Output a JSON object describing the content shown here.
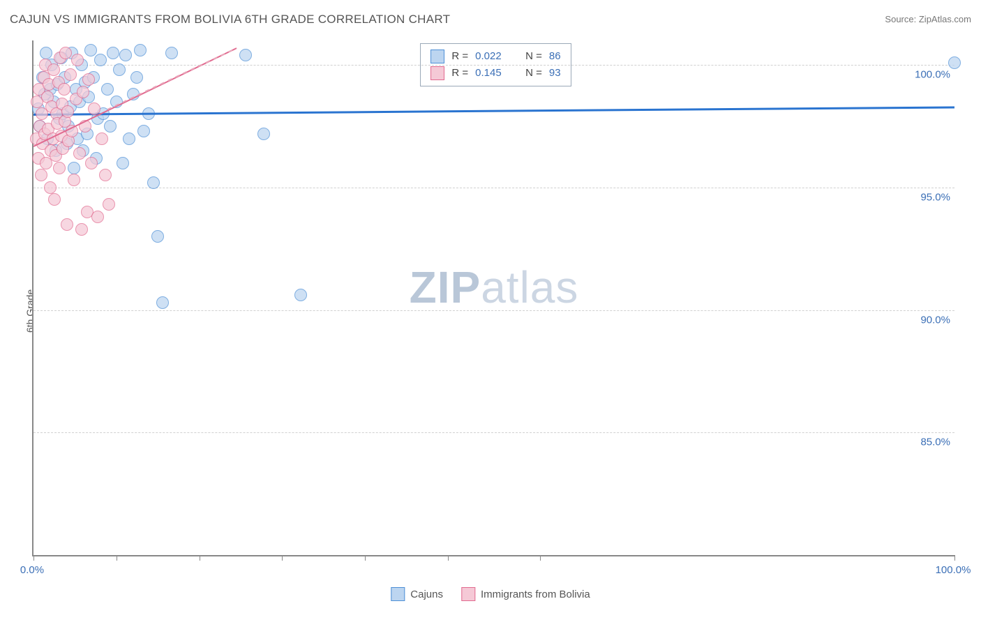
{
  "title": "CAJUN VS IMMIGRANTS FROM BOLIVIA 6TH GRADE CORRELATION CHART",
  "source_label": "Source:",
  "source_value": "ZipAtlas.com",
  "ylabel": "6th Grade",
  "watermark_a": "ZIP",
  "watermark_b": "atlas",
  "chart": {
    "type": "scatter",
    "xlim": [
      0,
      100
    ],
    "ylim": [
      80,
      101
    ],
    "x_ticks": [
      0,
      9,
      18,
      27,
      36,
      45,
      55,
      100
    ],
    "x_tick_labels": {
      "0": "0.0%",
      "100": "100.0%"
    },
    "y_gridlines": [
      85,
      90,
      95,
      100
    ],
    "y_tick_labels": {
      "85": "85.0%",
      "90": "90.0%",
      "95": "95.0%",
      "100": "100.0%"
    },
    "grid_color": "#d0d0d0",
    "axis_color": "#888888",
    "background_color": "#ffffff",
    "tick_label_color": "#3b6fb6",
    "marker_radius": 8,
    "marker_opacity": 0.72,
    "series": [
      {
        "name": "Cajuns",
        "color_fill": "#bcd5f0",
        "color_stroke": "#4d8fd6",
        "R": "0.022",
        "N": "86",
        "trend": {
          "x1": 0,
          "y1": 98.0,
          "x2": 100,
          "y2": 98.3,
          "color": "#2a74d0",
          "width": 2.5,
          "dash": false
        },
        "points": [
          [
            0.5,
            98.2
          ],
          [
            0.7,
            97.5
          ],
          [
            1.0,
            99.5
          ],
          [
            1.2,
            98.8
          ],
          [
            1.4,
            100.5
          ],
          [
            1.5,
            97.0
          ],
          [
            1.8,
            99.0
          ],
          [
            2.0,
            100.0
          ],
          [
            2.2,
            98.5
          ],
          [
            2.4,
            96.5
          ],
          [
            2.6,
            99.2
          ],
          [
            2.8,
            97.8
          ],
          [
            3.0,
            100.3
          ],
          [
            3.2,
            98.0
          ],
          [
            3.4,
            99.5
          ],
          [
            3.6,
            96.8
          ],
          [
            3.8,
            97.5
          ],
          [
            4.0,
            98.3
          ],
          [
            4.2,
            100.5
          ],
          [
            4.4,
            95.8
          ],
          [
            4.6,
            99.0
          ],
          [
            4.8,
            97.0
          ],
          [
            5.0,
            98.5
          ],
          [
            5.2,
            100.0
          ],
          [
            5.4,
            96.5
          ],
          [
            5.6,
            99.3
          ],
          [
            5.8,
            97.2
          ],
          [
            6.0,
            98.7
          ],
          [
            6.2,
            100.6
          ],
          [
            6.5,
            99.5
          ],
          [
            6.8,
            96.2
          ],
          [
            7.0,
            97.8
          ],
          [
            7.3,
            100.2
          ],
          [
            7.6,
            98.0
          ],
          [
            8.0,
            99.0
          ],
          [
            8.3,
            97.5
          ],
          [
            8.6,
            100.5
          ],
          [
            9.0,
            98.5
          ],
          [
            9.3,
            99.8
          ],
          [
            9.7,
            96.0
          ],
          [
            10.0,
            100.4
          ],
          [
            10.4,
            97.0
          ],
          [
            10.8,
            98.8
          ],
          [
            11.2,
            99.5
          ],
          [
            11.6,
            100.6
          ],
          [
            12.0,
            97.3
          ],
          [
            12.5,
            98.0
          ],
          [
            13.0,
            95.2
          ],
          [
            13.5,
            93.0
          ],
          [
            14.0,
            90.3
          ],
          [
            15.0,
            100.5
          ],
          [
            23.0,
            100.4
          ],
          [
            25.0,
            97.2
          ],
          [
            29.0,
            90.6
          ],
          [
            100.0,
            100.1
          ]
        ]
      },
      {
        "name": "Immigrants from Bolivia",
        "color_fill": "#f5c9d6",
        "color_stroke": "#e16a8f",
        "R": "0.145",
        "N": "93",
        "trend": {
          "x1": 0,
          "y1": 96.7,
          "x2": 22,
          "y2": 100.7,
          "color": "#e16a8f",
          "width": 2,
          "dash": false
        },
        "trend_ext": {
          "x1": 8,
          "y1": 98.2,
          "x2": 22,
          "y2": 100.7,
          "color": "#e9a5b9",
          "width": 1.5,
          "dash": true
        },
        "points": [
          [
            0.3,
            97.0
          ],
          [
            0.4,
            98.5
          ],
          [
            0.5,
            96.2
          ],
          [
            0.6,
            99.0
          ],
          [
            0.7,
            97.5
          ],
          [
            0.8,
            95.5
          ],
          [
            0.9,
            98.0
          ],
          [
            1.0,
            96.8
          ],
          [
            1.1,
            99.5
          ],
          [
            1.2,
            97.2
          ],
          [
            1.3,
            100.0
          ],
          [
            1.4,
            96.0
          ],
          [
            1.5,
            98.7
          ],
          [
            1.6,
            97.4
          ],
          [
            1.7,
            99.2
          ],
          [
            1.8,
            95.0
          ],
          [
            1.9,
            96.5
          ],
          [
            2.0,
            98.3
          ],
          [
            2.1,
            97.0
          ],
          [
            2.2,
            99.8
          ],
          [
            2.3,
            94.5
          ],
          [
            2.4,
            96.3
          ],
          [
            2.5,
            98.0
          ],
          [
            2.6,
            97.6
          ],
          [
            2.7,
            99.3
          ],
          [
            2.8,
            95.8
          ],
          [
            2.9,
            100.3
          ],
          [
            3.0,
            97.1
          ],
          [
            3.1,
            98.4
          ],
          [
            3.2,
            96.6
          ],
          [
            3.3,
            99.0
          ],
          [
            3.4,
            97.7
          ],
          [
            3.5,
            100.5
          ],
          [
            3.6,
            93.5
          ],
          [
            3.7,
            98.1
          ],
          [
            3.8,
            96.9
          ],
          [
            4.0,
            99.6
          ],
          [
            4.2,
            97.3
          ],
          [
            4.4,
            95.3
          ],
          [
            4.6,
            98.6
          ],
          [
            4.8,
            100.2
          ],
          [
            5.0,
            96.4
          ],
          [
            5.2,
            93.3
          ],
          [
            5.4,
            98.9
          ],
          [
            5.6,
            97.5
          ],
          [
            5.8,
            94.0
          ],
          [
            6.0,
            99.4
          ],
          [
            6.3,
            96.0
          ],
          [
            6.6,
            98.2
          ],
          [
            7.0,
            93.8
          ],
          [
            7.4,
            97.0
          ],
          [
            7.8,
            95.5
          ],
          [
            8.2,
            94.3
          ]
        ]
      }
    ]
  },
  "stats_box": {
    "R_label": "R =",
    "N_label": "N ="
  },
  "legend": {
    "items": [
      "Cajuns",
      "Immigrants from Bolivia"
    ]
  }
}
